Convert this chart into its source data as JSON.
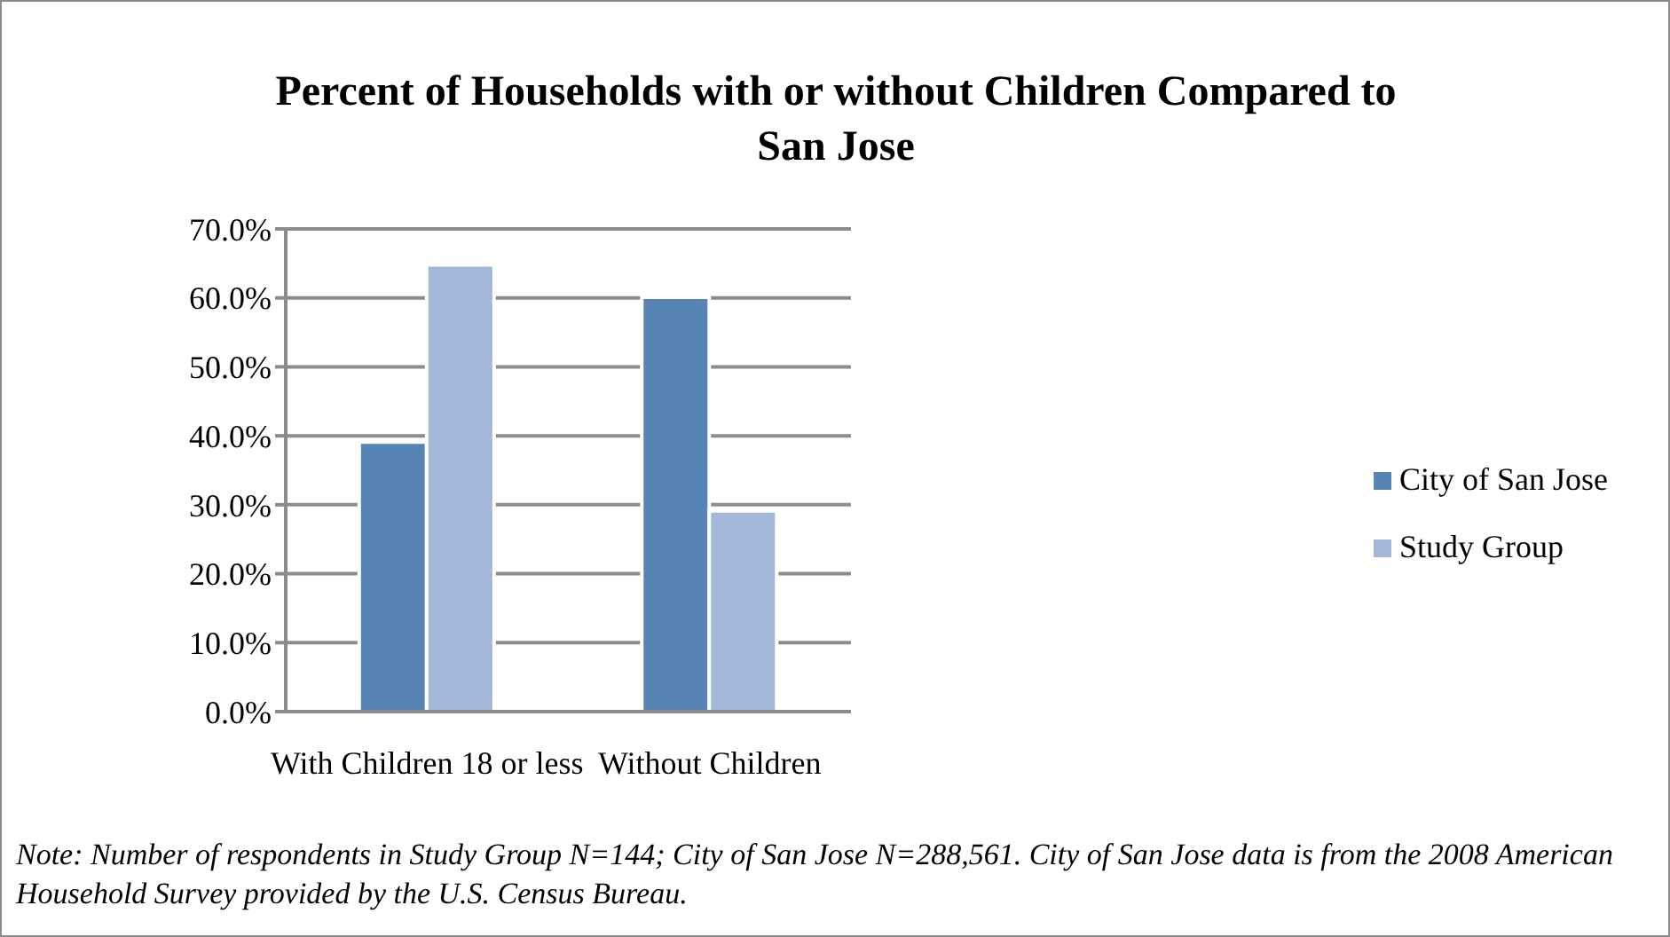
{
  "chart_data": {
    "type": "bar",
    "title": "Percent of Households with or without Children Compared to San Jose",
    "categories": [
      "With Children 18 or less",
      "Without Children"
    ],
    "series": [
      {
        "name": "City of San Jose",
        "color": "#5584b5",
        "values": [
          39.1,
          60.1
        ]
      },
      {
        "name": "Study Group",
        "color": "#a3b7d8",
        "values": [
          64.8,
          29.1
        ]
      }
    ],
    "ylim": [
      0,
      70
    ],
    "yticks": [
      {
        "value": 0,
        "label": "0.0%"
      },
      {
        "value": 10,
        "label": "10.0%"
      },
      {
        "value": 20,
        "label": "20.0%"
      },
      {
        "value": 30,
        "label": "30.0%"
      },
      {
        "value": 40,
        "label": "40.0%"
      },
      {
        "value": 50,
        "label": "50.0%"
      },
      {
        "value": 60,
        "label": "60.0%"
      },
      {
        "value": 70,
        "label": "70.0%"
      }
    ],
    "grid": "y",
    "legend": "right",
    "annotations": [
      "Note: Number of respondents in Study Group N=144; City of San Jose N=288,561. City of San Jose data is from the 2008 American Household Survey provided by the U.S. Census Bureau."
    ]
  }
}
